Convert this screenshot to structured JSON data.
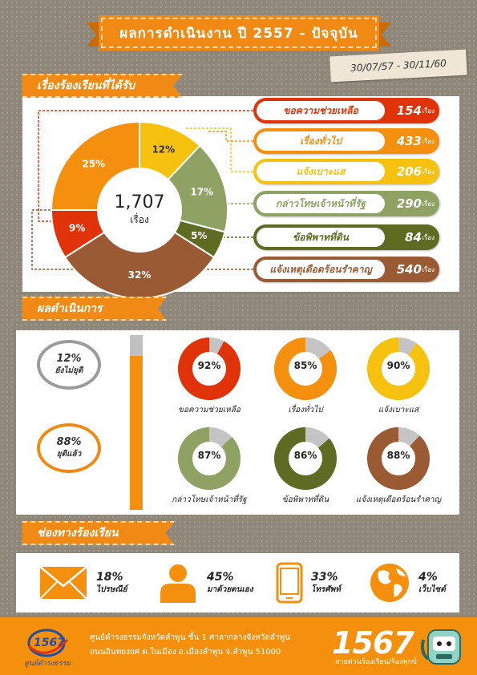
{
  "title": "ผลการดำเนินงาน ปี 2557 - ปัจจุบัน",
  "date_range": "30/07/57 - 30/11/60",
  "section_received": {
    "heading": "เรื่องร้องเรียนที่ได้รับ",
    "total": "1,707",
    "total_unit": "เรื่อง",
    "unit": "เรื่อง",
    "categories": [
      {
        "name": "ขอความช่วยเหลือ",
        "count": "154",
        "pct": "9%",
        "value": 9,
        "color": "#e0330a"
      },
      {
        "name": "เรื่องทั่วไป",
        "count": "433",
        "pct": "25%",
        "value": 25,
        "color": "#f5900e"
      },
      {
        "name": "แจ้งเบาะแส",
        "count": "206",
        "pct": "12%",
        "value": 12,
        "color": "#f7c20f"
      },
      {
        "name": "กล่าวโทษเจ้าหน้าที่รัฐ",
        "count": "290",
        "pct": "17%",
        "value": 17,
        "color": "#8fa264"
      },
      {
        "name": "ข้อพิพาทที่ดิน",
        "count": "84",
        "pct": "5%",
        "value": 5,
        "color": "#5f6b22"
      },
      {
        "name": "แจ้งเหตุเดือดร้อนรำคาญ",
        "count": "540",
        "pct": "32%",
        "value": 32,
        "color": "#9a5a33"
      }
    ]
  },
  "section_results": {
    "heading": "ผลดำเนินการ",
    "pending": {
      "pct": "12%",
      "label": "ยังไม่ยุติ",
      "value": 12
    },
    "done": {
      "pct": "88%",
      "label": "ยุติแล้ว",
      "value": 88
    },
    "rings": [
      {
        "pct": "92%",
        "value": 92,
        "label": "ขอความช่วยเหลือ",
        "color": "#e0330a"
      },
      {
        "pct": "85%",
        "value": 85,
        "label": "เรื่องทั่วไป",
        "color": "#f5900e"
      },
      {
        "pct": "90%",
        "value": 90,
        "label": "แจ้งเบาะแส",
        "color": "#f7c20f"
      },
      {
        "pct": "87%",
        "value": 87,
        "label": "กล่าวโทษเจ้าหน้าที่รัฐ",
        "color": "#8fa264"
      },
      {
        "pct": "86%",
        "value": 86,
        "label": "ข้อพิพาทที่ดิน",
        "color": "#5f6b22"
      },
      {
        "pct": "88%",
        "value": 88,
        "label": "แจ้งเหตุเดือดร้อนรำคาญ",
        "color": "#9a5a33"
      }
    ]
  },
  "section_channels": {
    "heading": "ช่องทางร้องเรียน",
    "channels": [
      {
        "icon": "mail-icon",
        "pct": "18%",
        "label": "ไปรษณีย์"
      },
      {
        "icon": "person-icon",
        "pct": "45%",
        "label": "มาด้วยตนเอง"
      },
      {
        "icon": "phone-icon",
        "pct": "33%",
        "label": "โทรศัพท์"
      },
      {
        "icon": "globe-icon",
        "pct": "4%",
        "label": "เว็บไซต์"
      }
    ]
  },
  "footer": {
    "address_line1": "ศูนย์ดำรงธรรมจังหวัดลำพูน ชั้น 1 ศาลากลางจังหวัดลำพูน",
    "address_line2": "ถนนอินทยงยศ ต.ในเมือง อ.เมืองลำพูน จ.ลำพูน 51000",
    "hotline": "1567",
    "tagline": "สายด่วนร้องเรียน/ร้องทุกข์",
    "logo_text": "1567",
    "logo_subtext": "ศูนย์ดำรงธรรม"
  }
}
